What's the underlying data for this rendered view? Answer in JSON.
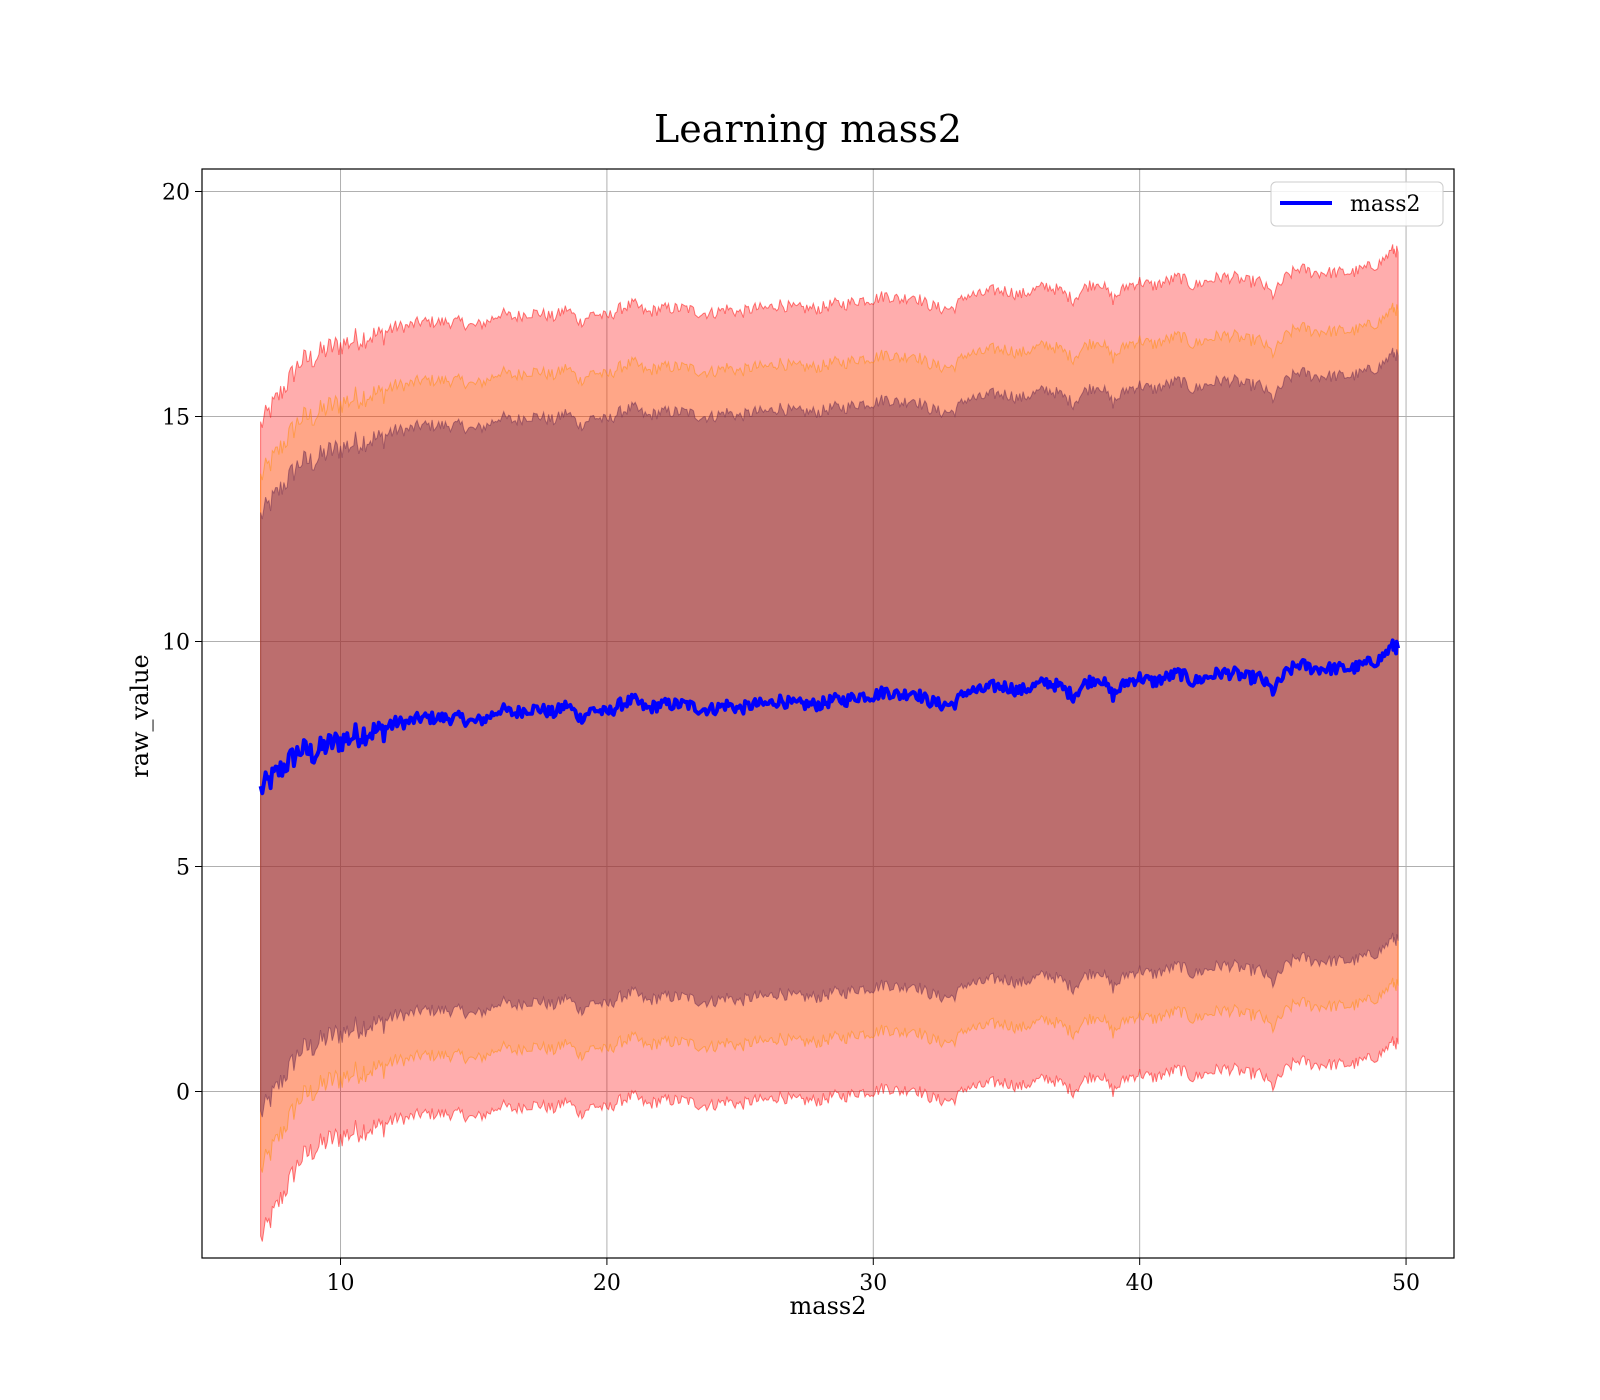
{
  "chart_data": {
    "type": "line",
    "title": "Learning mass2",
    "xlabel": "mass2",
    "ylabel": "raw_value",
    "xlim": [
      4.8,
      51.8
    ],
    "ylim": [
      -3.7,
      20.5
    ],
    "x_ticks": [
      10,
      20,
      30,
      40,
      50
    ],
    "y_ticks": [
      0,
      5,
      10,
      15,
      20
    ],
    "grid": true,
    "legend_position": "top-right",
    "series": [
      {
        "name": "mass2",
        "color": "#0000ff",
        "x": [
          7.0,
          7.5,
          8.0,
          8.5,
          9.0,
          9.5,
          10.0,
          10.5,
          11.0,
          11.5,
          12.0,
          12.5,
          13.0,
          13.5,
          14.0,
          14.5,
          15.0,
          15.5,
          16.0,
          16.5,
          17.0,
          17.5,
          18.0,
          18.5,
          19.0,
          19.5,
          20.0,
          20.5,
          21.0,
          21.5,
          22.0,
          22.5,
          23.0,
          23.5,
          24.0,
          24.5,
          25.0,
          25.5,
          26.0,
          26.5,
          27.0,
          27.5,
          28.0,
          28.5,
          29.0,
          29.5,
          30.0,
          30.5,
          31.0,
          31.5,
          32.0,
          32.5,
          33.0,
          33.5,
          34.0,
          34.5,
          35.0,
          35.5,
          36.0,
          36.5,
          37.0,
          37.5,
          38.0,
          38.5,
          39.0,
          39.5,
          40.0,
          40.5,
          41.0,
          41.5,
          42.0,
          42.5,
          43.0,
          43.5,
          44.0,
          44.5,
          45.0,
          45.5,
          46.0,
          46.5,
          47.0,
          47.5,
          48.0,
          48.5,
          49.0,
          49.5,
          49.7
        ],
        "y": [
          6.7,
          7.0,
          7.3,
          7.6,
          7.5,
          7.7,
          7.8,
          7.9,
          8.0,
          8.0,
          8.2,
          8.2,
          8.3,
          8.3,
          8.3,
          8.3,
          8.2,
          8.3,
          8.5,
          8.4,
          8.5,
          8.5,
          8.4,
          8.6,
          8.3,
          8.5,
          8.4,
          8.6,
          8.7,
          8.5,
          8.6,
          8.6,
          8.6,
          8.5,
          8.5,
          8.6,
          8.5,
          8.6,
          8.6,
          8.7,
          8.6,
          8.6,
          8.6,
          8.7,
          8.7,
          8.8,
          8.8,
          8.9,
          8.8,
          8.9,
          8.7,
          8.6,
          8.6,
          8.9,
          8.9,
          9.0,
          9.0,
          8.9,
          9.0,
          9.1,
          9.0,
          8.8,
          9.1,
          9.2,
          8.8,
          9.1,
          9.2,
          9.1,
          9.2,
          9.3,
          9.1,
          9.2,
          9.3,
          9.3,
          9.2,
          9.2,
          8.9,
          9.3,
          9.5,
          9.4,
          9.4,
          9.4,
          9.4,
          9.5,
          9.6,
          9.9,
          9.85
        ]
      }
    ],
    "bands": [
      {
        "color": "#ff0000",
        "opacity": 0.32,
        "lower_offset": -8.8,
        "upper_offset": 8.8
      },
      {
        "color": "#ff8c00",
        "opacity": 0.22,
        "lower_offset": -7.5,
        "upper_offset": 7.5
      },
      {
        "color": "#6a2a50",
        "opacity": 0.45,
        "lower_offset": -6.5,
        "upper_offset": 6.5
      }
    ]
  }
}
